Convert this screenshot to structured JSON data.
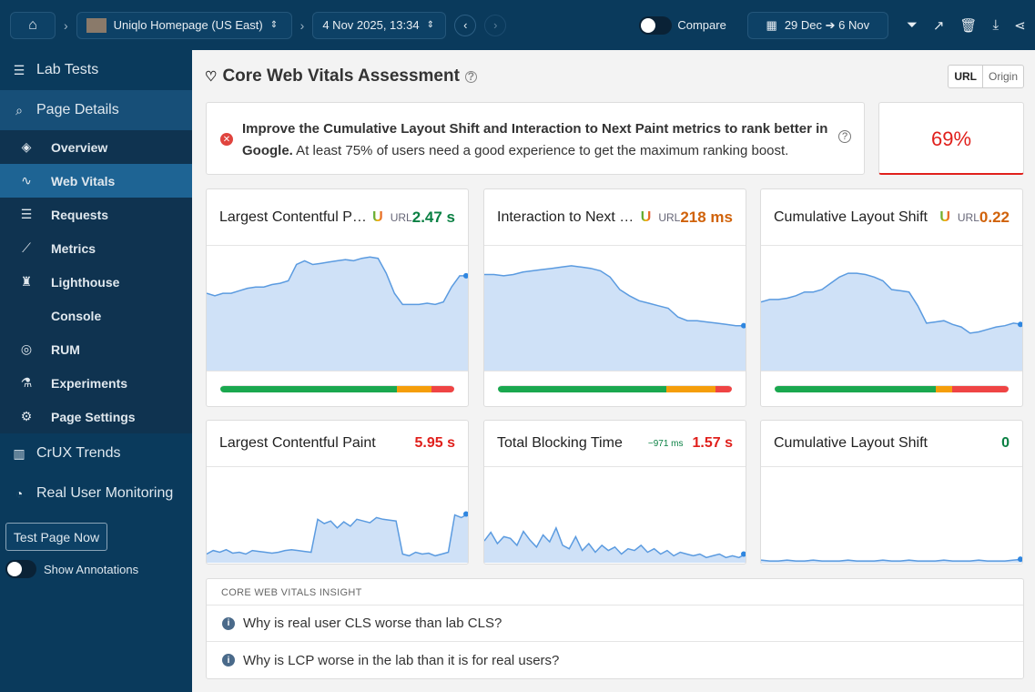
{
  "topbar": {
    "page": "Uniqlo Homepage (US East)",
    "test_time": "4 Nov 2025, 13:34",
    "compare_label": "Compare",
    "date_range": "29 Dec ➔ 6 Nov"
  },
  "sidebar": {
    "lab_tests": "Lab Tests",
    "page_details": "Page Details",
    "items": [
      {
        "label": "Overview",
        "icon": "layers-icon"
      },
      {
        "label": "Web Vitals",
        "icon": "pulse-icon"
      },
      {
        "label": "Requests",
        "icon": "list-icon"
      },
      {
        "label": "Metrics",
        "icon": "chart-line-icon"
      },
      {
        "label": "Lighthouse",
        "icon": "lighthouse-icon"
      },
      {
        "label": "Console",
        "icon": "code-icon"
      },
      {
        "label": "RUM",
        "icon": "rum-icon"
      },
      {
        "label": "Experiments",
        "icon": "flask-icon"
      },
      {
        "label": "Page Settings",
        "icon": "gear-icon"
      }
    ],
    "crux_trends": "CrUX Trends",
    "rum": "Real User Monitoring",
    "test_now": "Test Page Now",
    "annotations": "Show Annotations"
  },
  "assessment": {
    "title": "Core Web Vitals Assessment",
    "url_tab": "URL",
    "origin_tab": "Origin",
    "message_bold": "Improve the Cumulative Layout Shift and Interaction to Next Paint metrics to rank better in Google.",
    "message": " At least 75% of users need a good experience to get the maximum ranking boost.",
    "score": "69%"
  },
  "colors": {
    "good": "#1aa84f",
    "needs": "#f59e0b",
    "poor": "#ef4444",
    "green_text": "#0a8043",
    "orange_text": "#d0620a",
    "red_text": "#e0201c"
  },
  "crux_cards": [
    {
      "title": "Largest Contentful Paint",
      "src": "URL",
      "value": "2.47 s",
      "status": "good",
      "dist": [
        75.6,
        14.7,
        9.7
      ],
      "spark": [
        62,
        60,
        62,
        62,
        64,
        66,
        67,
        67,
        69,
        70,
        72,
        85,
        88,
        85,
        86,
        87,
        88,
        89,
        88,
        90,
        91,
        90,
        78,
        62,
        53,
        53,
        53,
        54,
        53,
        55,
        67,
        76,
        76
      ]
    },
    {
      "title": "Interaction to Next Paint",
      "src": "URL",
      "value": "218 ms",
      "status": "needs",
      "dist": [
        72,
        21,
        7
      ],
      "spark": [
        77,
        77,
        76,
        77,
        79,
        80,
        81,
        82,
        83,
        84,
        83,
        82,
        80,
        75,
        65,
        60,
        56,
        54,
        52,
        50,
        43,
        40,
        40,
        39,
        38,
        37,
        36,
        36
      ]
    },
    {
      "title": "Cumulative Layout Shift",
      "src": "URL",
      "value": "0.22",
      "status": "needs",
      "dist": [
        69,
        7,
        24
      ],
      "spark": [
        55,
        57,
        57,
        58,
        60,
        63,
        63,
        65,
        70,
        75,
        78,
        78,
        77,
        75,
        72,
        65,
        64,
        63,
        52,
        38,
        39,
        40,
        37,
        35,
        30,
        31,
        33,
        35,
        36,
        38,
        37
      ]
    }
  ],
  "lab_cards": [
    {
      "title": "Largest Contentful Paint",
      "value": "5.95 s",
      "status": "poor",
      "delta": "",
      "spark": [
        10,
        14,
        12,
        15,
        11,
        12,
        10,
        14,
        13,
        12,
        11,
        12,
        14,
        15,
        14,
        13,
        12,
        50,
        45,
        48,
        40,
        47,
        42,
        50,
        48,
        46,
        52,
        50,
        49,
        48,
        10,
        8,
        12,
        10,
        11,
        8,
        10,
        12,
        55,
        52,
        56
      ]
    },
    {
      "title": "Total Blocking Time",
      "value": "1.57 s",
      "status": "poor",
      "delta": "−971 ms",
      "spark": [
        25,
        35,
        22,
        30,
        28,
        20,
        36,
        26,
        18,
        32,
        24,
        40,
        20,
        16,
        30,
        14,
        22,
        12,
        20,
        14,
        18,
        10,
        16,
        14,
        20,
        12,
        16,
        10,
        14,
        8,
        12,
        10,
        8,
        10,
        6,
        8,
        10,
        6,
        8,
        6,
        10
      ]
    },
    {
      "title": "Cumulative Layout Shift",
      "value": "0",
      "status": "good",
      "delta": "",
      "spark": [
        3,
        2,
        2,
        3,
        2,
        2,
        3,
        2,
        2,
        2,
        3,
        2,
        2,
        2,
        3,
        2,
        2,
        3,
        2,
        2,
        2,
        3,
        2,
        2,
        2,
        3,
        2,
        2,
        2,
        3,
        4
      ]
    }
  ],
  "insights": {
    "heading": "CORE WEB VITALS INSIGHT",
    "items": [
      "Why is real user CLS worse than lab CLS?",
      "Why is LCP worse in the lab than it is for real users?"
    ]
  }
}
